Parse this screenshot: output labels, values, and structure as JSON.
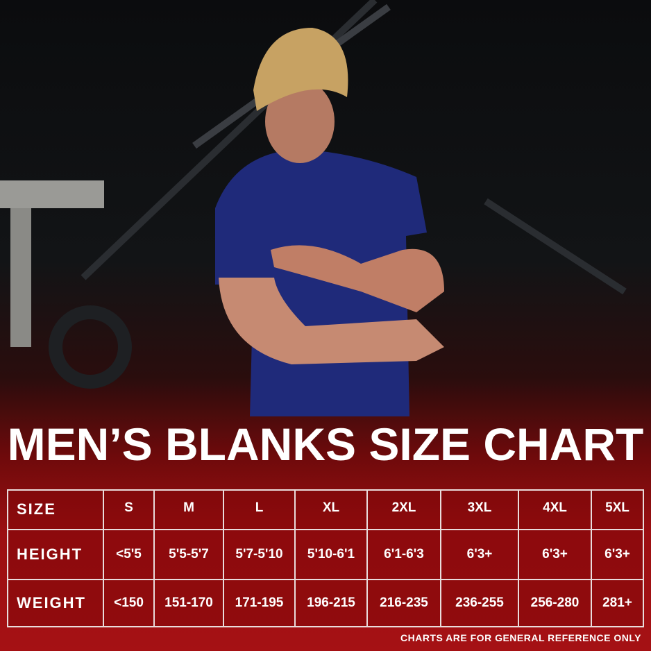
{
  "title": "MEN’S BLANKS SIZE CHART",
  "table": {
    "headers": [
      "SIZE",
      "S",
      "M",
      "L",
      "XL",
      "2XL",
      "3XL",
      "4XL",
      "5XL"
    ],
    "rows": [
      {
        "label": "HEIGHT",
        "values": [
          "<5'5",
          "5'5-5'7",
          "5'7-5'10",
          "5'10-6'1",
          "6'1-6'3",
          "6'3+",
          "6'3+",
          "6'3+"
        ]
      },
      {
        "label": "WEIGHT",
        "values": [
          "<150",
          "151-170",
          "171-195",
          "196-215",
          "216-235",
          "236-255",
          "256-280",
          "281+"
        ]
      }
    ]
  },
  "note": "CHARTS ARE FOR GENERAL REFERENCE ONLY",
  "colors": {
    "red": "#a51114",
    "shirt": "#1f2a7a",
    "text": "#ffffff"
  }
}
